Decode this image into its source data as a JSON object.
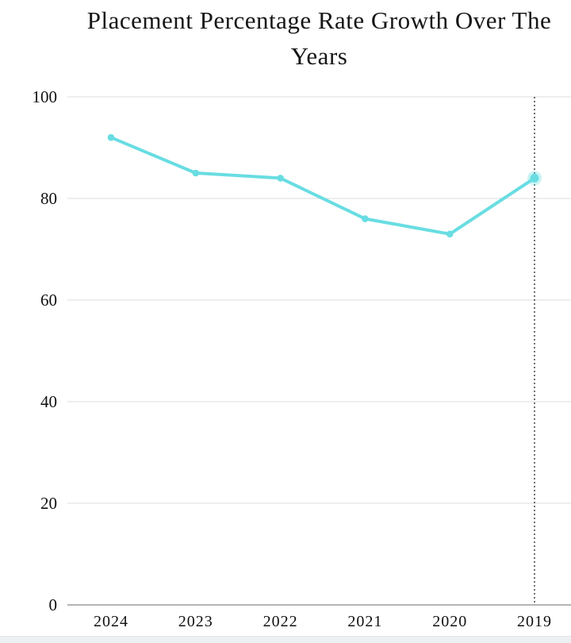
{
  "chart_data": {
    "type": "line",
    "title": "Placement Percentage Rate Growth Over The Years",
    "categories": [
      "2024",
      "2023",
      "2022",
      "2021",
      "2020",
      "2019"
    ],
    "values": [
      92,
      85,
      84,
      76,
      73,
      84
    ],
    "ylim": [
      0,
      100
    ],
    "yticks": [
      0,
      20,
      40,
      60,
      80,
      100
    ],
    "grid": true,
    "legend": "none",
    "line_color": "#68dde2",
    "marker_color": "#68dde2",
    "highlight_category": "2019",
    "crosshair": {
      "category": "2019",
      "style": "dotted",
      "color": "#141414"
    }
  },
  "colors": {
    "gridline": "#dcdcdc",
    "axis_line": "#9b9b9b",
    "tick_text": "#111111",
    "title_text": "#161616",
    "footer_strip": "#edf0f3"
  }
}
